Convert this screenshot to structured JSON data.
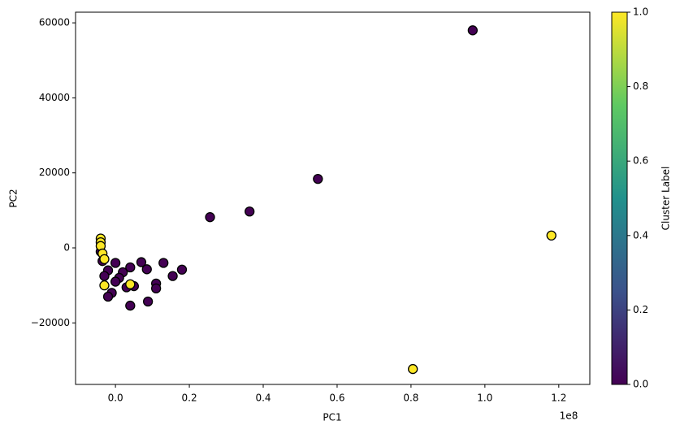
{
  "chart_data": {
    "type": "scatter",
    "xlabel": "PC1",
    "ylabel": "PC2",
    "x_offset_text": "1e8",
    "x": [
      0.967,
      0.548,
      0.363,
      0.256,
      0.18,
      0.155,
      0.13,
      0.11,
      0.11,
      0.088,
      0.085,
      0.07,
      0.05,
      0.04,
      0.04,
      0.03,
      0.02,
      0.01,
      0.0,
      0.0,
      -0.01,
      -0.02,
      -0.02,
      -0.03,
      -0.035,
      -0.04,
      -0.04,
      -0.04,
      -0.04,
      -0.035,
      -0.03,
      -0.03,
      0.04,
      0.805,
      1.18
    ],
    "y": [
      58000,
      18400,
      9700,
      8200,
      -5800,
      -7500,
      -4000,
      -9500,
      -10800,
      -14300,
      -5700,
      -3800,
      -10200,
      -15400,
      -5200,
      -10500,
      -6500,
      -8000,
      -4000,
      -9000,
      -12000,
      -13000,
      -6000,
      -7500,
      -3500,
      -1000,
      2500,
      1500,
      500,
      -1500,
      -3000,
      -10000,
      -9700,
      -32300,
      3300
    ],
    "cluster": [
      0,
      0,
      0,
      0,
      0,
      0,
      0,
      0,
      0,
      0,
      0,
      0,
      0,
      0,
      0,
      0,
      0,
      0,
      0,
      0,
      0,
      0,
      0,
      0,
      0,
      0,
      1,
      1,
      1,
      1,
      1,
      1,
      1,
      1,
      1
    ],
    "xlim": [
      -0.108,
      1.284
    ],
    "ylim": [
      -36400,
      62840
    ],
    "xticks": [
      {
        "value": 0,
        "label": "0.0"
      },
      {
        "value": 0.2,
        "label": "0.2"
      },
      {
        "value": 0.4,
        "label": "0.4"
      },
      {
        "value": 0.6,
        "label": "0.6"
      },
      {
        "value": 0.8,
        "label": "0.8"
      },
      {
        "value": 1,
        "label": "1.0"
      },
      {
        "value": 1.2,
        "label": "1.2"
      }
    ],
    "yticks": [
      {
        "value": -20000,
        "label": "−20000"
      },
      0,
      20000,
      40000,
      60000
    ],
    "colorbar": {
      "label": "Cluster Label",
      "clim": [
        0,
        1
      ],
      "ticks": [
        {
          "value": 0,
          "label": "0.0"
        },
        {
          "value": 0.2,
          "label": "0.2"
        },
        {
          "value": 0.4,
          "label": "0.4"
        },
        {
          "value": 0.6,
          "label": "0.6"
        },
        {
          "value": 0.8,
          "label": "0.8"
        },
        {
          "value": 1,
          "label": "1.0"
        }
      ],
      "colormap": [
        "#440154",
        "#3b528b",
        "#21918c",
        "#5ec962",
        "#fde725"
      ]
    },
    "grid": false
  }
}
